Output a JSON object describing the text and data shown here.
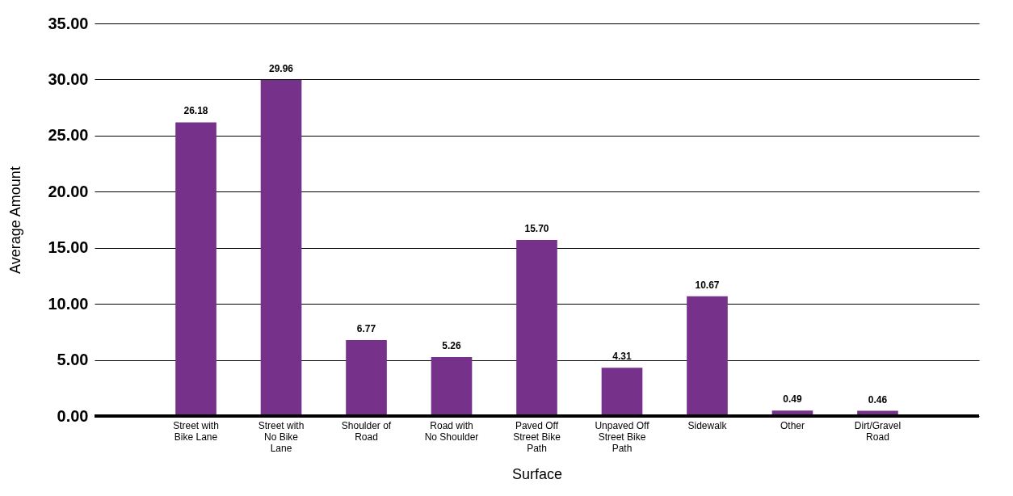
{
  "chart_data": {
    "type": "bar",
    "xlabel": "Surface",
    "ylabel": "Average Amount",
    "categories": [
      "Street with Bike Lane",
      "Street with No Bike Lane",
      "Shoulder of Road",
      "Road with No Shoulder",
      "Paved Off Street Bike Path",
      "Unpaved Off Street Bike Path",
      "Sidewalk",
      "Other",
      "Dirt/Gravel Road"
    ],
    "values": [
      26.18,
      29.96,
      6.77,
      5.26,
      15.7,
      4.31,
      10.67,
      0.49,
      0.46
    ],
    "color": "#76318a",
    "value_labels": [
      "26.18",
      "29.96",
      "6.77",
      "5.26",
      "15.70",
      "4.31",
      "10.67",
      "0.49",
      "0.46"
    ],
    "ylim": [
      0,
      35
    ],
    "yticks": [
      {
        "value": 0,
        "label": "0.00"
      },
      {
        "value": 5,
        "label": "5.00"
      },
      {
        "value": 10,
        "label": "10.00"
      },
      {
        "value": 15,
        "label": "15.00"
      },
      {
        "value": 20,
        "label": "20.00"
      },
      {
        "value": 25,
        "label": "25.00"
      },
      {
        "value": 30,
        "label": "30.00"
      },
      {
        "value": 35,
        "label": "35.00"
      }
    ],
    "grid": "y"
  }
}
